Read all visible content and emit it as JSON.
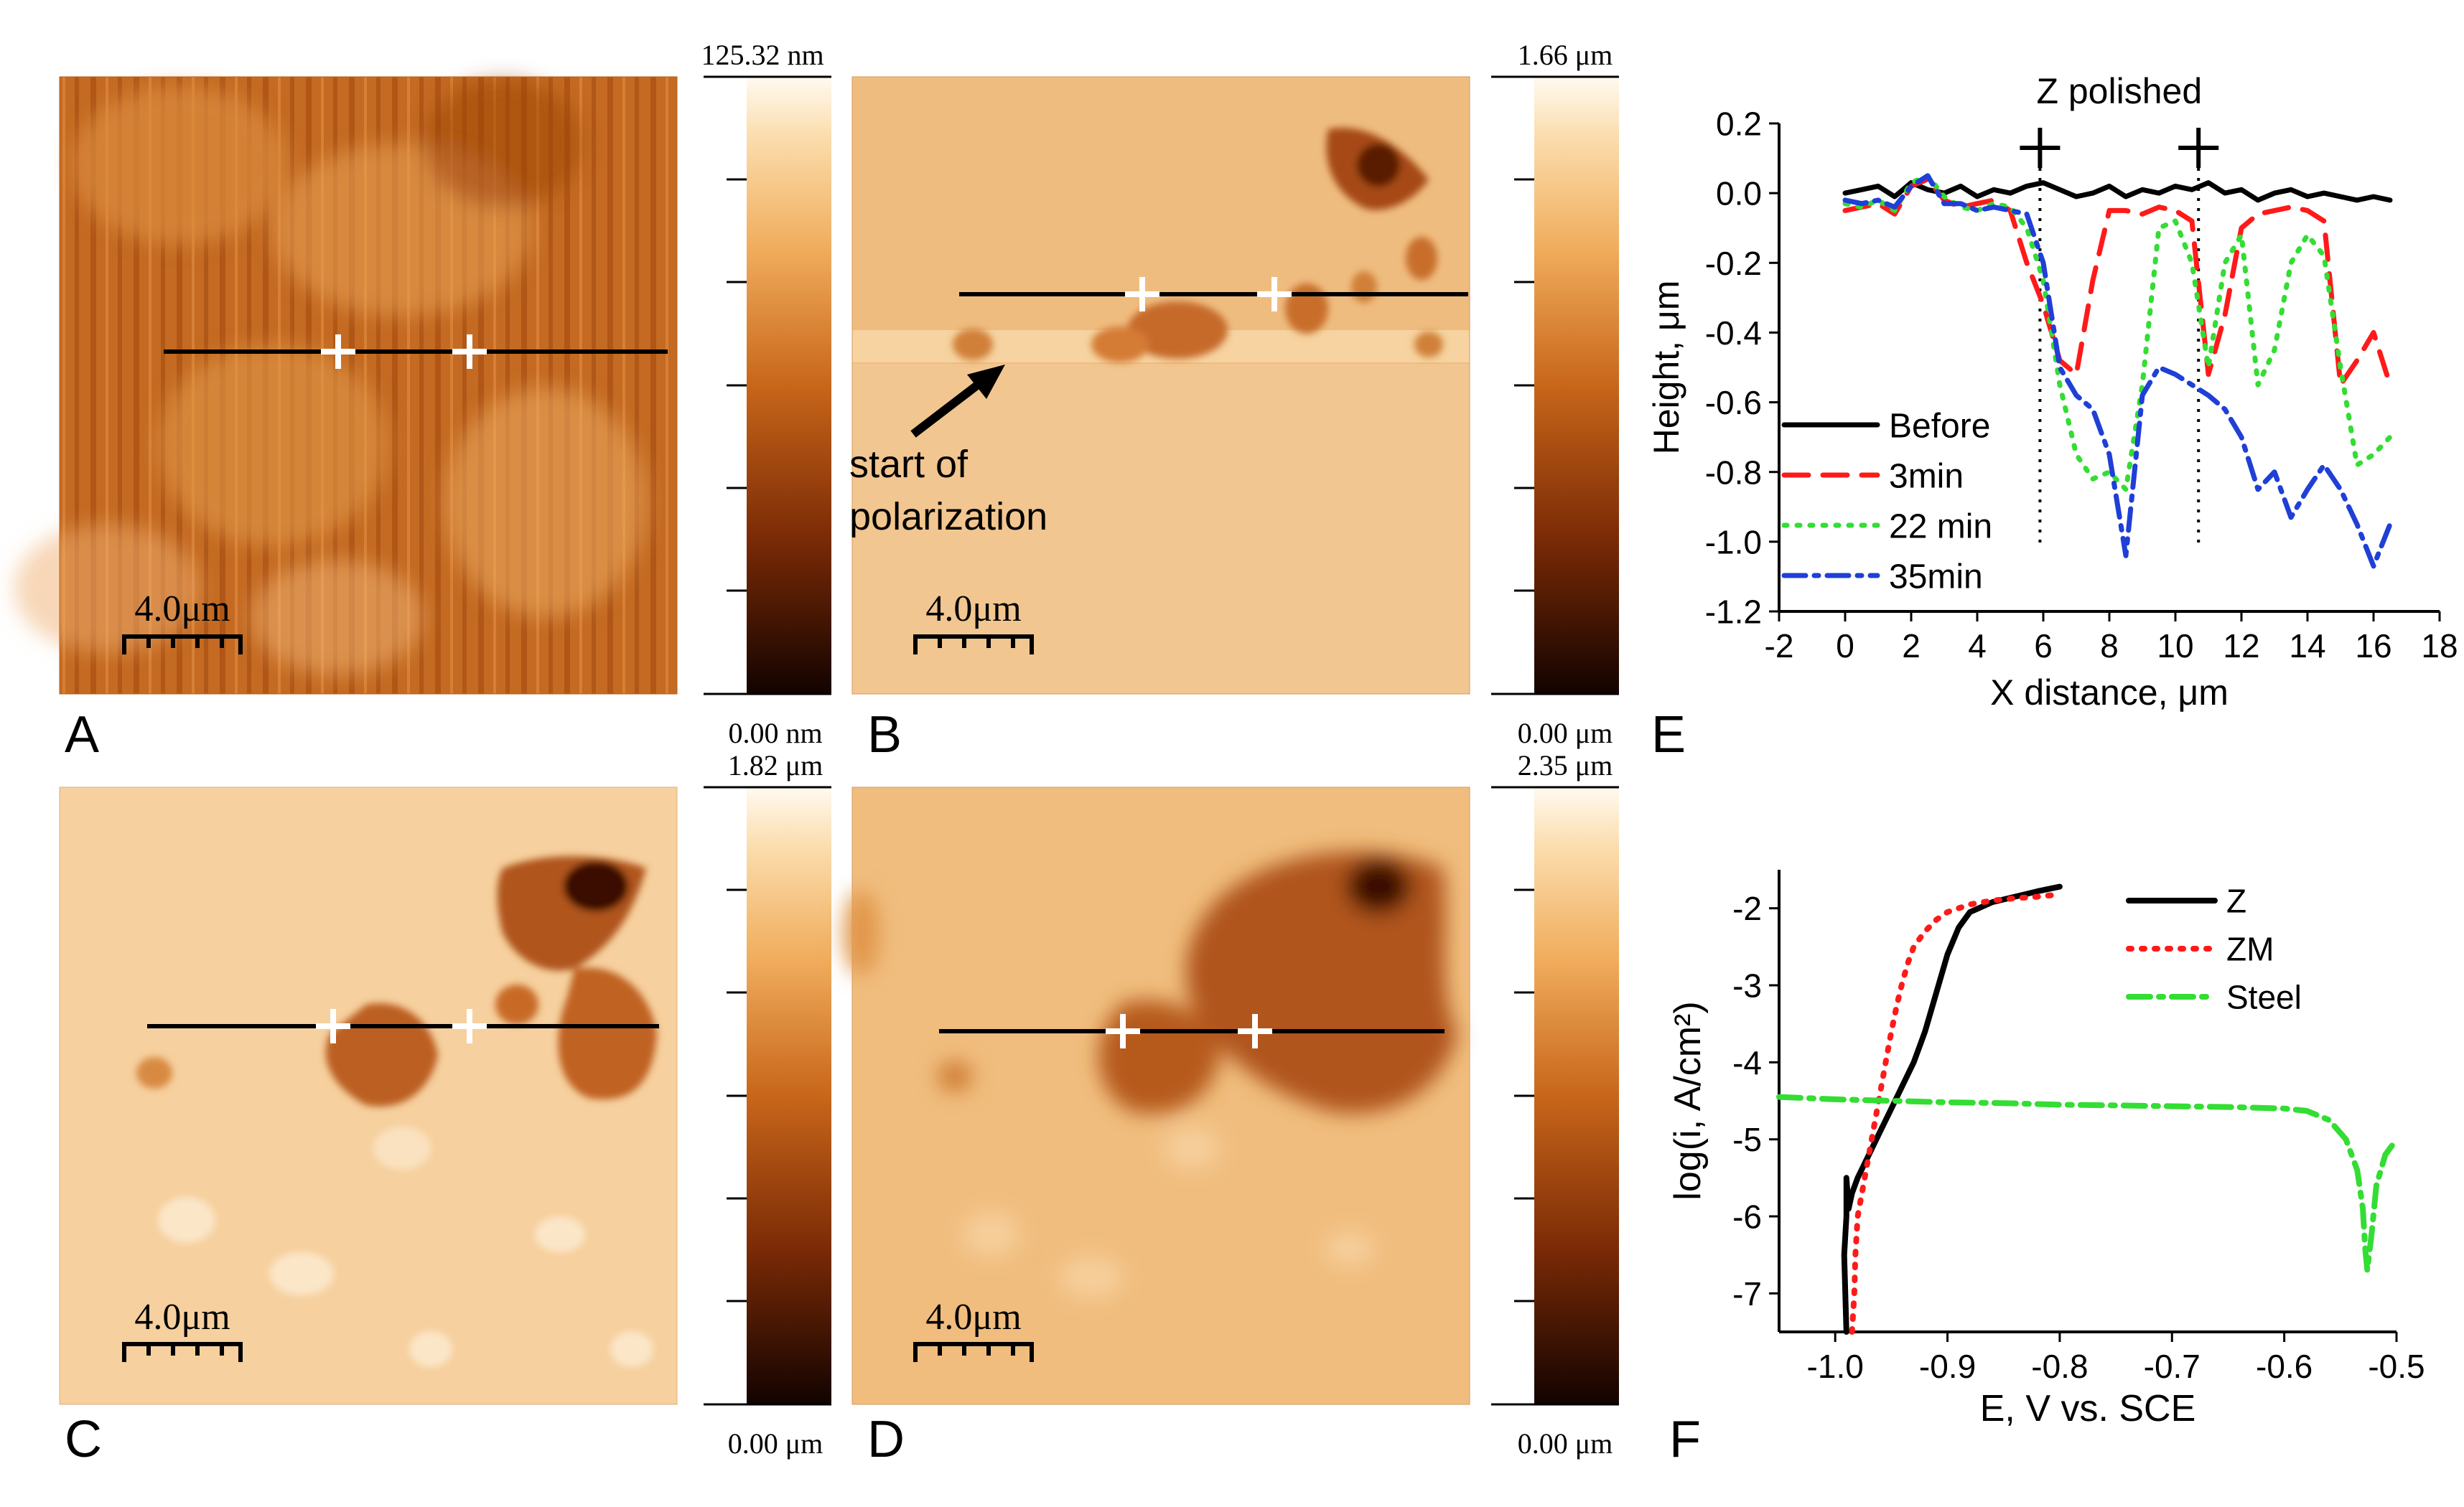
{
  "panels": {
    "A": {
      "label": "A",
      "scale_label": "4.0μm",
      "colorbar_max": "125.32 nm",
      "colorbar_min": "0.00 nm"
    },
    "B": {
      "label": "B",
      "scale_label": "4.0μm",
      "colorbar_max": "1.66 μm",
      "colorbar_min": "0.00 μm",
      "annotation_line1": "start of",
      "annotation_line2": "polarization"
    },
    "C": {
      "label": "C",
      "scale_label": "4.0μm",
      "colorbar_max": "1.82 μm",
      "colorbar_min": "0.00 μm"
    },
    "D": {
      "label": "D",
      "scale_label": "4.0μm",
      "colorbar_max": "2.35 μm",
      "colorbar_min": "0.00 μm"
    },
    "E": {
      "label": "E"
    },
    "F": {
      "label": "F"
    }
  },
  "colors": {
    "afm_dark": "#1a0500",
    "afm_mid": "#b5540f",
    "afm_orange": "#e9a255",
    "afm_light": "#fff6e6",
    "black": "#000000",
    "red": "#ff1a1a",
    "green": "#33dd33",
    "blue": "#1f3fd6"
  },
  "chart_data": [
    {
      "id": "E",
      "type": "line",
      "title": "Z polished",
      "xlabel": "X distance, μm",
      "ylabel": "Height, μm",
      "xlim": [
        -2,
        18
      ],
      "ylim": [
        -1.2,
        0.2
      ],
      "xticks": [
        "-2",
        "0",
        "2",
        "4",
        "6",
        "8",
        "10",
        "12",
        "14",
        "16",
        "18"
      ],
      "yticks": [
        "0.2",
        "0.0",
        "-0.2",
        "-0.4",
        "-0.6",
        "-0.8",
        "-1.0",
        "-1.2"
      ],
      "markers": [
        {
          "x": 5.9,
          "y": 0.13
        },
        {
          "x": 10.7,
          "y": 0.13
        }
      ],
      "vlines": [
        5.9,
        10.7
      ],
      "series": [
        {
          "name": "Before",
          "color": "#000000",
          "style": "solid",
          "x": [
            0,
            0.5,
            1,
            1.5,
            2,
            2.5,
            3,
            3.5,
            4,
            4.5,
            5,
            5.5,
            6,
            6.5,
            7,
            7.5,
            8,
            8.5,
            9,
            9.5,
            10,
            10.5,
            11,
            11.5,
            12,
            12.5,
            13,
            13.5,
            14,
            14.5,
            15,
            15.5,
            16,
            16.5
          ],
          "y": [
            0.0,
            0.01,
            0.02,
            -0.01,
            0.03,
            0.01,
            0.0,
            0.02,
            -0.01,
            0.01,
            0.0,
            0.02,
            0.03,
            0.01,
            -0.01,
            0.0,
            0.02,
            -0.01,
            0.01,
            0.0,
            0.02,
            0.01,
            0.03,
            0.0,
            0.01,
            -0.02,
            0.0,
            0.01,
            -0.01,
            0.0,
            -0.01,
            -0.02,
            -0.01,
            -0.02
          ]
        },
        {
          "name": "3min",
          "color": "#ff1a1a",
          "style": "dash",
          "x": [
            0,
            0.5,
            1,
            1.5,
            2,
            2.5,
            3,
            3.5,
            4,
            4.5,
            5,
            5.5,
            6,
            6.5,
            7,
            7.5,
            8,
            8.5,
            9,
            9.5,
            10,
            10.5,
            11,
            11.5,
            12,
            12.5,
            13,
            13.5,
            14,
            14.5,
            15,
            15.5,
            16,
            16.5
          ],
          "y": [
            -0.05,
            -0.04,
            -0.03,
            -0.06,
            0.02,
            0.04,
            -0.02,
            -0.04,
            -0.03,
            -0.02,
            -0.05,
            -0.2,
            -0.32,
            -0.48,
            -0.52,
            -0.25,
            -0.05,
            -0.05,
            -0.06,
            -0.04,
            -0.05,
            -0.08,
            -0.52,
            -0.35,
            -0.1,
            -0.06,
            -0.05,
            -0.04,
            -0.05,
            -0.08,
            -0.55,
            -0.48,
            -0.4,
            -0.55
          ]
        },
        {
          "name": "22 min",
          "color": "#33dd33",
          "style": "dot",
          "x": [
            0,
            0.5,
            1,
            1.5,
            2,
            2.5,
            3,
            3.5,
            4,
            4.5,
            5,
            5.5,
            6,
            6.5,
            7,
            7.5,
            8,
            8.5,
            9,
            9.5,
            10,
            10.5,
            11,
            11.5,
            12,
            12.5,
            13,
            13.5,
            14,
            14.5,
            15,
            15.5,
            16,
            16.5
          ],
          "y": [
            -0.03,
            -0.04,
            -0.02,
            -0.05,
            0.03,
            0.05,
            -0.01,
            -0.04,
            -0.05,
            -0.03,
            -0.04,
            -0.1,
            -0.25,
            -0.55,
            -0.75,
            -0.82,
            -0.8,
            -0.85,
            -0.55,
            -0.1,
            -0.08,
            -0.2,
            -0.5,
            -0.2,
            -0.12,
            -0.55,
            -0.45,
            -0.2,
            -0.12,
            -0.18,
            -0.5,
            -0.78,
            -0.75,
            -0.7
          ]
        },
        {
          "name": "35min",
          "color": "#1f3fd6",
          "style": "dashdot",
          "x": [
            0,
            0.5,
            1,
            1.5,
            2,
            2.5,
            3,
            3.5,
            4,
            4.5,
            5,
            5.5,
            6,
            6.5,
            7,
            7.5,
            8,
            8.5,
            9,
            9.5,
            10,
            10.5,
            11,
            11.5,
            12,
            12.5,
            13,
            13.5,
            14,
            14.5,
            15,
            15.5,
            16,
            16.5
          ],
          "y": [
            -0.02,
            -0.03,
            -0.02,
            -0.04,
            0.02,
            0.05,
            -0.03,
            -0.03,
            -0.05,
            -0.04,
            -0.05,
            -0.06,
            -0.2,
            -0.5,
            -0.58,
            -0.62,
            -0.75,
            -1.04,
            -0.58,
            -0.5,
            -0.52,
            -0.55,
            -0.58,
            -0.62,
            -0.7,
            -0.85,
            -0.8,
            -0.93,
            -0.85,
            -0.78,
            -0.85,
            -0.95,
            -1.07,
            -0.95
          ]
        }
      ]
    },
    {
      "id": "F",
      "type": "line",
      "xlabel": "E, V vs. SCE",
      "ylabel": "log(i, A/cm2)",
      "xlim": [
        -1.05,
        -0.5
      ],
      "ylim": [
        -7.5,
        -1.5
      ],
      "xticks": [
        "-1.0",
        "-0.9",
        "-0.8",
        "-0.7",
        "-0.6",
        "-0.5"
      ],
      "yticks": [
        "-2",
        "-3",
        "-4",
        "-5",
        "-6",
        "-7"
      ],
      "series": [
        {
          "name": "Z",
          "color": "#000000",
          "style": "solid",
          "x": [
            -0.99,
            -0.992,
            -0.99,
            -0.99,
            -0.988,
            -0.985,
            -0.98,
            -0.97,
            -0.96,
            -0.95,
            -0.94,
            -0.93,
            -0.92,
            -0.91,
            -0.9,
            -0.89,
            -0.88,
            -0.86,
            -0.84,
            -0.82,
            -0.8
          ],
          "y": [
            -7.5,
            -6.5,
            -6.0,
            -5.5,
            -5.9,
            -5.7,
            -5.5,
            -5.2,
            -4.9,
            -4.6,
            -4.3,
            -4.0,
            -3.6,
            -3.1,
            -2.6,
            -2.25,
            -2.05,
            -1.92,
            -1.85,
            -1.78,
            -1.72
          ]
        },
        {
          "name": "ZM",
          "color": "#ff1a1a",
          "style": "dot",
          "x": [
            -0.985,
            -0.983,
            -0.982,
            -0.98,
            -0.975,
            -0.97,
            -0.965,
            -0.96,
            -0.955,
            -0.95,
            -0.945,
            -0.94,
            -0.935,
            -0.93,
            -0.92,
            -0.91,
            -0.9,
            -0.88,
            -0.86,
            -0.84,
            -0.82,
            -0.8
          ],
          "y": [
            -7.5,
            -7.0,
            -6.5,
            -6.0,
            -5.6,
            -5.2,
            -4.8,
            -4.4,
            -4.0,
            -3.6,
            -3.25,
            -2.95,
            -2.7,
            -2.5,
            -2.3,
            -2.15,
            -2.05,
            -1.95,
            -1.9,
            -1.87,
            -1.85,
            -1.82
          ]
        },
        {
          "name": "Steel",
          "color": "#33dd33",
          "style": "dashdot",
          "x": [
            -1.05,
            -1.0,
            -0.95,
            -0.9,
            -0.85,
            -0.8,
            -0.75,
            -0.7,
            -0.65,
            -0.6,
            -0.58,
            -0.56,
            -0.545,
            -0.535,
            -0.53,
            -0.528,
            -0.526,
            -0.522,
            -0.518,
            -0.51,
            -0.5
          ],
          "y": [
            -4.45,
            -4.48,
            -4.5,
            -4.52,
            -4.53,
            -4.55,
            -4.56,
            -4.57,
            -4.58,
            -4.6,
            -4.63,
            -4.75,
            -5.0,
            -5.4,
            -5.9,
            -6.4,
            -6.7,
            -6.2,
            -5.6,
            -5.2,
            -5.0
          ]
        }
      ]
    }
  ]
}
